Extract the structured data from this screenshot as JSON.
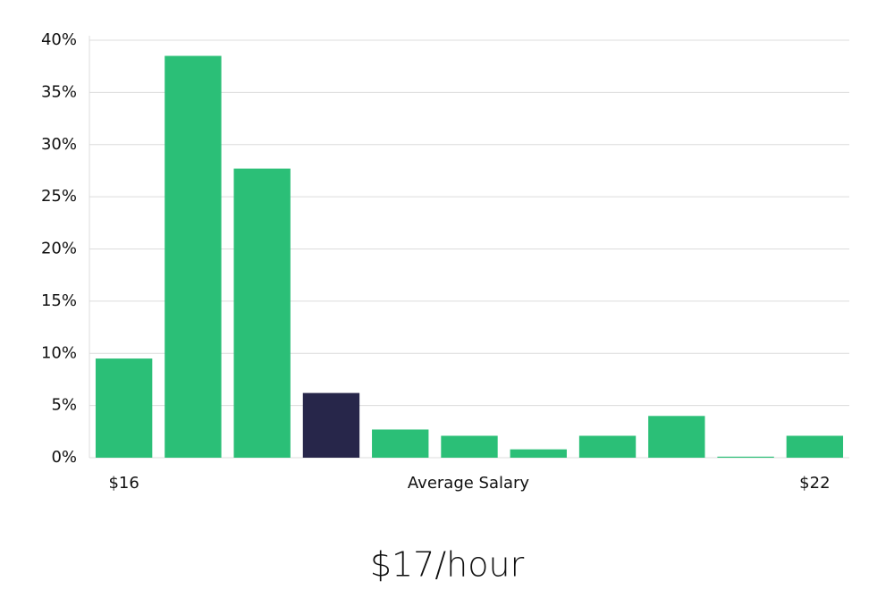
{
  "chart_data": {
    "type": "bar",
    "x_label": "Average Salary",
    "annotation": "$17/hour",
    "categories": [
      "$16",
      null,
      null,
      null,
      null,
      null,
      null,
      null,
      null,
      null,
      "$22"
    ],
    "values": [
      9.5,
      38.5,
      27.7,
      6.2,
      2.7,
      2.1,
      0.8,
      2.1,
      4.0,
      0.1,
      2.1
    ],
    "colors": [
      "#2bbf77",
      "#2bbf77",
      "#2bbf77",
      "#27264a",
      "#2bbf77",
      "#2bbf77",
      "#2bbf77",
      "#2bbf77",
      "#2bbf77",
      "#2bbf77",
      "#2bbf77"
    ],
    "ylim": [
      0,
      40
    ],
    "yticks": [
      {
        "value": 0,
        "label": "0%"
      },
      {
        "value": 5,
        "label": "5%"
      },
      {
        "value": 10,
        "label": "10%"
      },
      {
        "value": 15,
        "label": "15%"
      },
      {
        "value": 20,
        "label": "20%"
      },
      {
        "value": 25,
        "label": "25%"
      },
      {
        "value": 30,
        "label": "30%"
      },
      {
        "value": 35,
        "label": "35%"
      },
      {
        "value": 40,
        "label": "40%"
      }
    ],
    "grid": true
  }
}
